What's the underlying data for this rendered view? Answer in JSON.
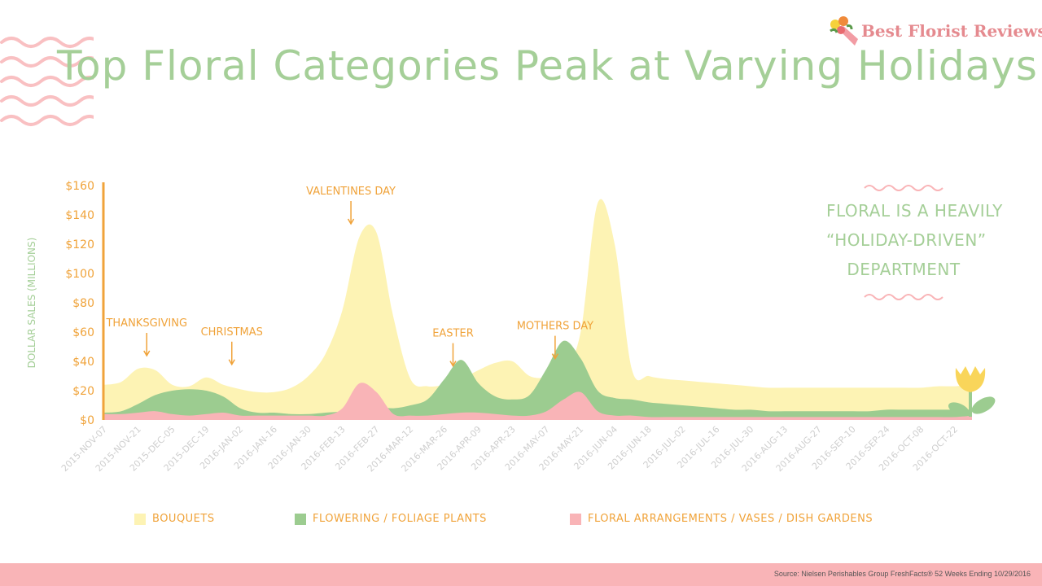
{
  "page": {
    "title": "Top Floral Categories Peak at Varying Holidays",
    "brand": "Best Florist Reviews",
    "callout_lines": [
      "FLORAL IS A HEAVILY",
      "“HOLIDAY-DRIVEN”",
      "DEPARTMENT"
    ],
    "source": "Source: Nielsen Perishables Group FreshFacts® 52 Weeks Ending 10/29/2016"
  },
  "colors": {
    "bouquets": "#fdf3b4",
    "plants": "#9ccc90",
    "arrangements": "#f9b4b7",
    "axis": "#f0a33a",
    "annotation": "#f0a33a",
    "title": "#a5cf98"
  },
  "chart_data": {
    "type": "area",
    "title": "Top Floral Categories Peak at Varying Holidays",
    "ylabel": "DOLLAR SALES (MILLIONS)",
    "ylim": [
      0,
      160
    ],
    "yticks": [
      "$0",
      "$20",
      "$40",
      "$60",
      "$80",
      "$100",
      "$120",
      "$140",
      "$160"
    ],
    "ytick_values": [
      0,
      20,
      40,
      60,
      80,
      100,
      120,
      140,
      160
    ],
    "x_labels": [
      "2015-NOV-07",
      "2015-NOV-21",
      "2015-DEC-05",
      "2015-DEC-19",
      "2016-JAN-02",
      "2016-JAN-16",
      "2016-JAN-30",
      "2016-FEB-13",
      "2016-FEB-27",
      "2016-MAR-12",
      "2016-MAR-26",
      "2016-APR-09",
      "2016-APR-23",
      "2016-MAY-07",
      "2016-MAY-21",
      "2016-JUN-04",
      "2016-JUN-18",
      "2016-JUL-02",
      "2016-JUL-16",
      "2016-JUL-30",
      "2016-AUG-13",
      "2016-AUG-27",
      "2016-SEP-10",
      "2016-SEP-24",
      "2016-OCT-08",
      "2016-OCT-22"
    ],
    "x_weeks": [
      "2015-11-07",
      "2015-11-14",
      "2015-11-21",
      "2015-11-28",
      "2015-12-05",
      "2015-12-12",
      "2015-12-19",
      "2015-12-26",
      "2016-01-02",
      "2016-01-09",
      "2016-01-16",
      "2016-01-23",
      "2016-01-30",
      "2016-02-06",
      "2016-02-13",
      "2016-02-20",
      "2016-02-27",
      "2016-03-05",
      "2016-03-12",
      "2016-03-19",
      "2016-03-26",
      "2016-04-02",
      "2016-04-09",
      "2016-04-16",
      "2016-04-23",
      "2016-04-30",
      "2016-05-07",
      "2016-05-14",
      "2016-05-21",
      "2016-05-28",
      "2016-06-04",
      "2016-06-11",
      "2016-06-18",
      "2016-06-25",
      "2016-07-02",
      "2016-07-09",
      "2016-07-16",
      "2016-07-23",
      "2016-07-30",
      "2016-08-06",
      "2016-08-13",
      "2016-08-20",
      "2016-08-27",
      "2016-09-03",
      "2016-09-10",
      "2016-09-17",
      "2016-09-24",
      "2016-10-01",
      "2016-10-08",
      "2016-10-15",
      "2016-10-22",
      "2016-10-29"
    ],
    "series": [
      {
        "name": "BOUQUETS",
        "values": [
          24,
          26,
          35,
          34,
          24,
          23,
          29,
          24,
          21,
          19,
          19,
          22,
          30,
          45,
          75,
          125,
          128,
          70,
          28,
          23,
          24,
          28,
          34,
          39,
          40,
          30,
          29,
          33,
          60,
          148,
          120,
          35,
          30,
          28,
          27,
          26,
          25,
          24,
          23,
          22,
          22,
          22,
          22,
          22,
          22,
          22,
          22,
          22,
          22,
          23,
          23,
          24
        ]
      },
      {
        "name": "FLOWERING / FOLIAGE PLANTS",
        "values": [
          5,
          6,
          11,
          17,
          20,
          21,
          20,
          16,
          8,
          5,
          5,
          4,
          4,
          5,
          6,
          9,
          9,
          8,
          10,
          14,
          28,
          41,
          25,
          16,
          14,
          17,
          35,
          54,
          42,
          20,
          15,
          14,
          12,
          11,
          10,
          9,
          8,
          7,
          7,
          6,
          6,
          6,
          6,
          6,
          6,
          6,
          7,
          7,
          7,
          7,
          7,
          7
        ]
      },
      {
        "name": "FLORAL ARRANGEMENTS / VASES / DISH GARDENS",
        "values": [
          4,
          4,
          5,
          6,
          4,
          3,
          4,
          5,
          3,
          3,
          3,
          3,
          3,
          3,
          8,
          25,
          19,
          4,
          3,
          3,
          4,
          5,
          5,
          4,
          3,
          3,
          6,
          14,
          19,
          6,
          3,
          3,
          2,
          2,
          2,
          2,
          2,
          2,
          2,
          2,
          2,
          2,
          2,
          2,
          2,
          2,
          2,
          2,
          2,
          2,
          2,
          3
        ]
      }
    ],
    "annotations": [
      {
        "label": "THANKSGIVING",
        "week": "2015-11-21"
      },
      {
        "label": "CHRISTMAS",
        "week": "2015-12-26"
      },
      {
        "label": "VALENTINES DAY",
        "week": "2016-02-13"
      },
      {
        "label": "EASTER",
        "week": "2016-03-26"
      },
      {
        "label": "MOTHERS DAY",
        "week": "2016-05-07"
      }
    ],
    "legend": [
      "BOUQUETS",
      "FLOWERING / FOLIAGE PLANTS",
      "FLORAL ARRANGEMENTS / VASES / DISH GARDENS"
    ],
    "grid": false,
    "legend_position": "bottom"
  }
}
